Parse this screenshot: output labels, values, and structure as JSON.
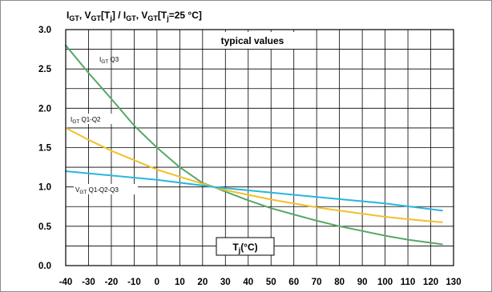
{
  "chart_data": {
    "type": "line",
    "title_parts": {
      "i_main": "I",
      "i_sub": "GT",
      "sep1": ", ",
      "v_main": "V",
      "v_sub": "GT",
      "mid1": "[T",
      "j1": "j",
      "mid2": "] / I",
      "i2_sub": "GT",
      "sep2": ", V",
      "v2_sub": "GT",
      "mid3": "[T",
      "j2": "j",
      "end": "=25 °C]"
    },
    "annotation": "typical values",
    "xlabel_parts": {
      "main": "T",
      "sub": "j",
      "unit": "(°C)"
    },
    "xlim": [
      -40,
      130
    ],
    "ylim": [
      0,
      3
    ],
    "x_ticks": [
      -40,
      -30,
      -20,
      -10,
      0,
      10,
      20,
      30,
      40,
      50,
      60,
      70,
      80,
      90,
      100,
      110,
      120,
      130
    ],
    "y_ticks": [
      "0.0",
      "0.5",
      "1.0",
      "1.5",
      "2.0",
      "2.5",
      "3.0"
    ],
    "grid": true,
    "series": [
      {
        "label_main": "I",
        "label_sub": "GT",
        "label_rest": " Q3",
        "color": "#55a868",
        "x": [
          -40,
          -30,
          -20,
          -10,
          0,
          10,
          20,
          25,
          30,
          40,
          50,
          60,
          70,
          80,
          90,
          100,
          110,
          125
        ],
        "y": [
          2.8,
          2.45,
          2.12,
          1.78,
          1.5,
          1.25,
          1.05,
          1.0,
          0.94,
          0.83,
          0.73,
          0.65,
          0.57,
          0.5,
          0.44,
          0.38,
          0.33,
          0.27
        ]
      },
      {
        "label_main": "I",
        "label_sub": "GT",
        "label_rest": " Q1-Q2",
        "color": "#f2bf2c",
        "x": [
          -40,
          -30,
          -20,
          -10,
          0,
          10,
          20,
          25,
          30,
          40,
          50,
          60,
          70,
          80,
          90,
          100,
          110,
          125
        ],
        "y": [
          1.75,
          1.6,
          1.46,
          1.34,
          1.22,
          1.13,
          1.04,
          1.0,
          0.96,
          0.9,
          0.84,
          0.79,
          0.74,
          0.7,
          0.66,
          0.62,
          0.59,
          0.55
        ]
      },
      {
        "label_main": "V",
        "label_sub": "GT",
        "label_rest": " Q1-Q2-Q3",
        "color": "#29b6e0",
        "x": [
          -40,
          0,
          25,
          60,
          100,
          125
        ],
        "y": [
          1.2,
          1.09,
          1.0,
          0.9,
          0.79,
          0.7
        ]
      }
    ]
  }
}
